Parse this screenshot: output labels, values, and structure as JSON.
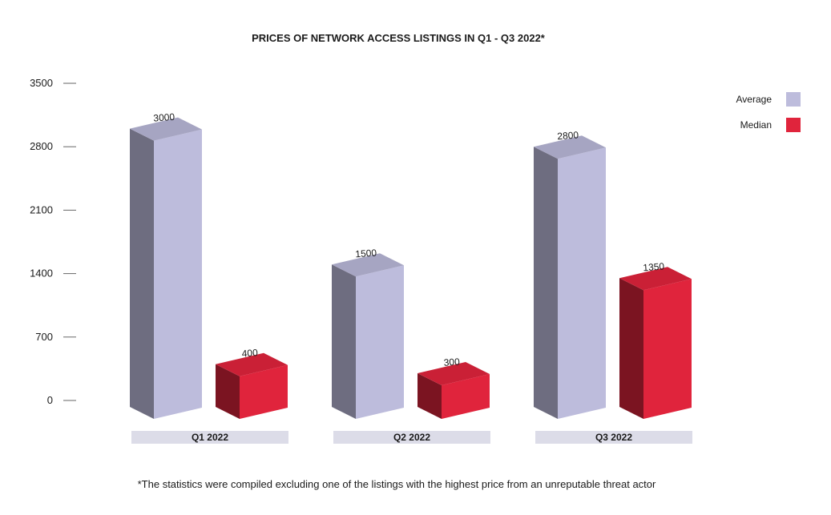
{
  "chart_data": {
    "type": "bar",
    "title": "PRICES OF NETWORK ACCESS LISTINGS IN Q1 - Q3 2022*",
    "categories": [
      "Q1 2022",
      "Q2 2022",
      "Q3 2022"
    ],
    "series": [
      {
        "name": "Average",
        "color": "#bdbcdc",
        "values": [
          3000,
          1500,
          2800
        ]
      },
      {
        "name": "Median",
        "color": "#e0243c",
        "values": [
          400,
          300,
          1350
        ]
      }
    ],
    "value_labels": [
      [
        "3000",
        "1500",
        "2800"
      ],
      [
        "400",
        "300",
        "1350"
      ]
    ],
    "yticks": [
      0,
      700,
      1400,
      2100,
      2800,
      3500
    ],
    "ylim": [
      0,
      3500
    ],
    "xlabel": "",
    "ylabel": "",
    "legend_position": "top-right",
    "footnote": "*The statistics were compiled excluding one of the listings with the highest price from an unreputable threat actor"
  }
}
